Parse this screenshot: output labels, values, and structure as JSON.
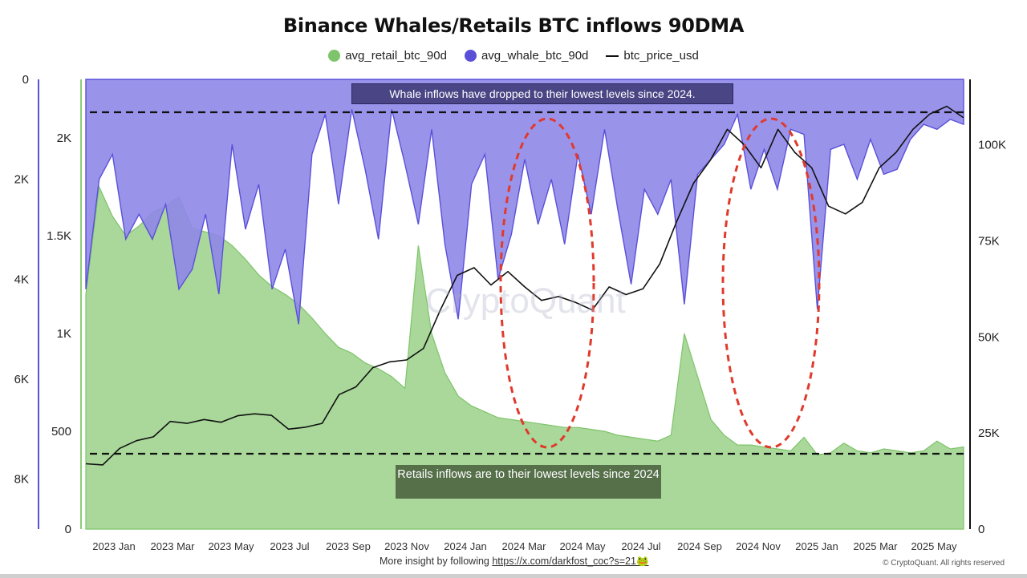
{
  "title": "Binance Whales/Retails BTC inflows 90DMA",
  "legend": {
    "retail": "avg_retail_btc_90d",
    "whale": "avg_whale_btc_90d",
    "price": "btc_price_usd"
  },
  "colors": {
    "retail": "#7ec46a",
    "retail_fill": "#a9d89a",
    "whale": "#5a50d8",
    "whale_fill": "#8f87e8",
    "price": "#111111",
    "ellipse": "#e03a2c"
  },
  "annotations": {
    "whale_note": "Whale inflows have dropped to their lowest levels since 2024.",
    "retail_note": "Retails inflows are to their lowest levels since 2024"
  },
  "footer": {
    "prefix": "More insight by following",
    "link": "https://x.com/darkfost_coc?s=21🐸",
    "copyright": "© CryptoQuant. All rights reserved"
  },
  "chart_data": {
    "type": "area",
    "x_ticks": [
      "2023 Jan",
      "2023 Mar",
      "2023 May",
      "2023 Jul",
      "2023 Sep",
      "2023 Nov",
      "2024 Jan",
      "2024 Mar",
      "2024 May",
      "2024 Jul",
      "2024 Sep",
      "2024 Nov",
      "2025 Jan",
      "2025 Mar",
      "2025 May"
    ],
    "axes": {
      "retail_axis": {
        "ticks": [
          "0",
          "500",
          "1K",
          "1.5K",
          "2K"
        ],
        "range": [
          0,
          2300
        ]
      },
      "whale_axis": {
        "ticks": [
          "0",
          "2K",
          "4K",
          "6K",
          "8K"
        ],
        "range": [
          0,
          9000
        ],
        "inverted": true
      },
      "price_axis": {
        "ticks": [
          "0",
          "25K",
          "50K",
          "75K",
          "100K"
        ],
        "range": [
          0,
          117000
        ]
      }
    },
    "series": [
      {
        "name": "avg_retail_btc_90d",
        "axis": "retail_axis",
        "values": [
          1200,
          1750,
          1600,
          1500,
          1550,
          1620,
          1650,
          1700,
          1540,
          1520,
          1500,
          1450,
          1380,
          1300,
          1240,
          1200,
          1150,
          1080,
          1000,
          930,
          900,
          850,
          820,
          780,
          720,
          1450,
          1000,
          800,
          680,
          630,
          600,
          570,
          560,
          550,
          540,
          530,
          520,
          520,
          510,
          500,
          480,
          470,
          460,
          450,
          480,
          1000,
          780,
          560,
          480,
          430,
          430,
          420,
          410,
          400,
          470,
          380,
          390,
          440,
          400,
          390,
          410,
          400,
          390,
          400,
          450,
          410,
          420
        ]
      },
      {
        "name": "avg_whale_btc_90d",
        "axis": "whale_axis",
        "values": [
          4200,
          2000,
          1500,
          3200,
          2700,
          3200,
          2500,
          4200,
          3800,
          2700,
          4300,
          1300,
          3000,
          2100,
          4200,
          3400,
          4900,
          1500,
          700,
          2500,
          600,
          1800,
          3200,
          600,
          1700,
          2900,
          1000,
          3300,
          4800,
          2100,
          1500,
          4000,
          3100,
          1600,
          2900,
          2000,
          3300,
          1500,
          2700,
          1000,
          2600,
          4100,
          2200,
          2700,
          2000,
          4500,
          1900,
          1600,
          1300,
          700,
          2200,
          1400,
          2200,
          1000,
          1100,
          4600,
          1400,
          1300,
          2000,
          1200,
          1900,
          1800,
          1200,
          900,
          1000,
          800,
          900
        ]
      },
      {
        "name": "btc_price_usd",
        "axis": "price_axis",
        "values": [
          17000,
          16700,
          21000,
          23000,
          24000,
          28000,
          27500,
          28500,
          27800,
          29500,
          30000,
          29600,
          26000,
          26500,
          27500,
          35000,
          37000,
          42000,
          43500,
          44000,
          47000,
          57000,
          66000,
          68000,
          63500,
          67000,
          63000,
          59500,
          60500,
          59000,
          57000,
          63000,
          61000,
          62500,
          69000,
          80000,
          90000,
          96000,
          104000,
          100000,
          94000,
          104000,
          98000,
          94000,
          84000,
          82000,
          85000,
          94000,
          98000,
          104000,
          108000,
          110000,
          107000
        ]
      }
    ]
  }
}
